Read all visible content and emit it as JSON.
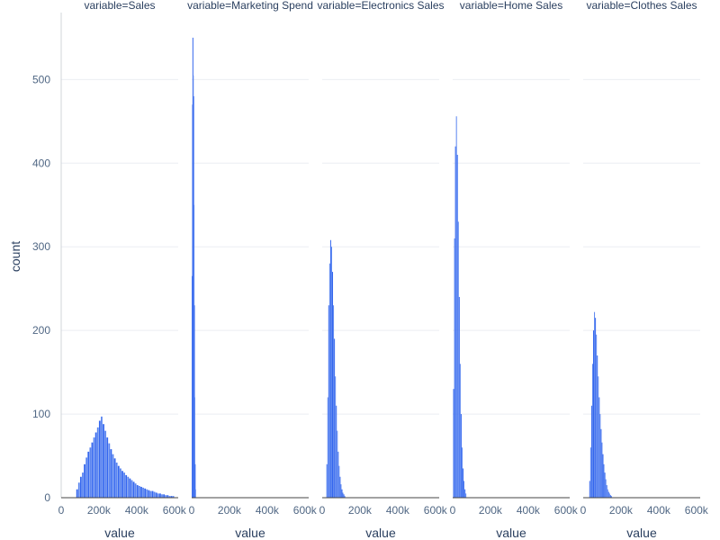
{
  "chart_data": {
    "type": "bar",
    "subtype": "histogram-facets",
    "ylabel": "count",
    "xlabel": "value",
    "ylim": [
      0,
      580
    ],
    "xlim": [
      0,
      620000
    ],
    "yticks": [
      0,
      100,
      200,
      300,
      400,
      500
    ],
    "yticklabels": [
      "0",
      "100",
      "200",
      "300",
      "400",
      "500"
    ],
    "xticks": [
      0,
      200000,
      400000,
      600000
    ],
    "xticklabels": [
      "0",
      "200k",
      "400k",
      "600k"
    ],
    "grid": true,
    "colors": {
      "bar": "#3366ee",
      "bar_light": "#5a85f0",
      "grid": "#ebeef2",
      "axis": "#444444",
      "text": "#2a3f5f",
      "tick": "#506784"
    },
    "facets": [
      {
        "title": "variable=Sales",
        "bins": [
          [
            85000,
            10
          ],
          [
            95000,
            18
          ],
          [
            105000,
            25
          ],
          [
            115000,
            30
          ],
          [
            125000,
            40
          ],
          [
            135000,
            48
          ],
          [
            145000,
            55
          ],
          [
            155000,
            60
          ],
          [
            165000,
            66
          ],
          [
            175000,
            72
          ],
          [
            185000,
            78
          ],
          [
            195000,
            84
          ],
          [
            205000,
            92
          ],
          [
            215000,
            97
          ],
          [
            225000,
            88
          ],
          [
            235000,
            80
          ],
          [
            245000,
            72
          ],
          [
            255000,
            65
          ],
          [
            265000,
            58
          ],
          [
            275000,
            52
          ],
          [
            285000,
            47
          ],
          [
            295000,
            42
          ],
          [
            305000,
            38
          ],
          [
            315000,
            35
          ],
          [
            325000,
            32
          ],
          [
            335000,
            30
          ],
          [
            345000,
            27
          ],
          [
            355000,
            25
          ],
          [
            365000,
            23
          ],
          [
            375000,
            21
          ],
          [
            385000,
            19
          ],
          [
            395000,
            17
          ],
          [
            405000,
            15
          ],
          [
            415000,
            14
          ],
          [
            425000,
            13
          ],
          [
            435000,
            12
          ],
          [
            445000,
            11
          ],
          [
            455000,
            10
          ],
          [
            465000,
            9
          ],
          [
            475000,
            8
          ],
          [
            485000,
            8
          ],
          [
            495000,
            7
          ],
          [
            505000,
            6
          ],
          [
            515000,
            5
          ],
          [
            525000,
            5
          ],
          [
            535000,
            4
          ],
          [
            545000,
            4
          ],
          [
            555000,
            3
          ],
          [
            565000,
            3
          ],
          [
            575000,
            2
          ],
          [
            585000,
            2
          ],
          [
            595000,
            2
          ]
        ]
      },
      {
        "title": "variable=Marketing Spend",
        "bins": [
          [
            1000,
            265
          ],
          [
            3000,
            470
          ],
          [
            5000,
            550
          ],
          [
            7000,
            505
          ],
          [
            9000,
            480
          ],
          [
            11000,
            350
          ],
          [
            13000,
            230
          ],
          [
            15000,
            120
          ],
          [
            17000,
            40
          ],
          [
            19000,
            10
          ]
        ]
      },
      {
        "title": "variable=Electronics Sales",
        "bins": [
          [
            25000,
            40
          ],
          [
            30000,
            120
          ],
          [
            35000,
            230
          ],
          [
            40000,
            280
          ],
          [
            45000,
            308
          ],
          [
            50000,
            300
          ],
          [
            55000,
            270
          ],
          [
            60000,
            230
          ],
          [
            65000,
            190
          ],
          [
            70000,
            145
          ],
          [
            75000,
            110
          ],
          [
            80000,
            80
          ],
          [
            85000,
            55
          ],
          [
            90000,
            38
          ],
          [
            95000,
            25
          ],
          [
            100000,
            16
          ],
          [
            105000,
            10
          ],
          [
            110000,
            6
          ],
          [
            115000,
            4
          ],
          [
            120000,
            2
          ]
        ]
      },
      {
        "title": "variable=Home Sales",
        "bins": [
          [
            5000,
            130
          ],
          [
            10000,
            310
          ],
          [
            15000,
            420
          ],
          [
            20000,
            456
          ],
          [
            25000,
            410
          ],
          [
            30000,
            330
          ],
          [
            35000,
            240
          ],
          [
            40000,
            160
          ],
          [
            45000,
            100
          ],
          [
            50000,
            60
          ],
          [
            55000,
            35
          ],
          [
            60000,
            20
          ],
          [
            65000,
            10
          ],
          [
            70000,
            5
          ]
        ]
      },
      {
        "title": "variable=Clothes Sales",
        "bins": [
          [
            35000,
            20
          ],
          [
            40000,
            60
          ],
          [
            45000,
            110
          ],
          [
            50000,
            160
          ],
          [
            55000,
            200
          ],
          [
            60000,
            222
          ],
          [
            65000,
            215
          ],
          [
            70000,
            195
          ],
          [
            75000,
            170
          ],
          [
            80000,
            145
          ],
          [
            85000,
            120
          ],
          [
            90000,
            100
          ],
          [
            95000,
            82
          ],
          [
            100000,
            66
          ],
          [
            105000,
            52
          ],
          [
            110000,
            40
          ],
          [
            115000,
            30
          ],
          [
            120000,
            22
          ],
          [
            125000,
            15
          ],
          [
            130000,
            10
          ],
          [
            135000,
            7
          ],
          [
            140000,
            5
          ],
          [
            145000,
            3
          ],
          [
            150000,
            2
          ]
        ]
      }
    ]
  }
}
